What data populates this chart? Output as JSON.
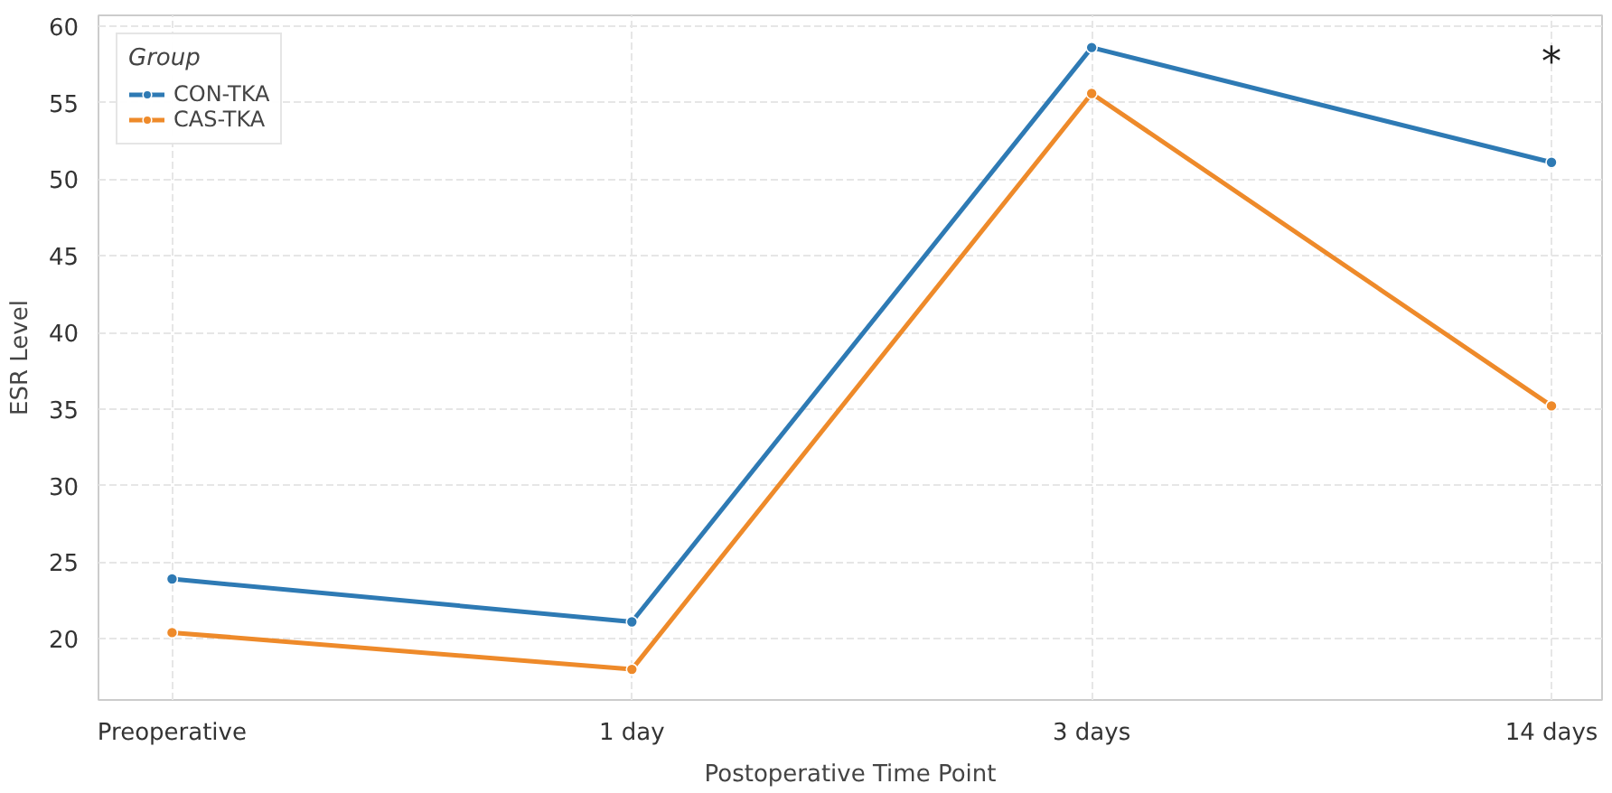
{
  "chart_data": {
    "type": "line",
    "xlabel": "Postoperative Time Point",
    "ylabel": "ESR Level",
    "legend_title": "Group",
    "categories": [
      "Preoperative",
      "1 day",
      "3 days",
      "14 days"
    ],
    "series": [
      {
        "name": "CON-TKA",
        "color": "#2e7ab4",
        "values": [
          23.9,
          21.1,
          58.6,
          51.1
        ]
      },
      {
        "name": "CAS-TKA",
        "color": "#ee8a2a",
        "values": [
          20.4,
          18.0,
          55.6,
          35.2
        ]
      }
    ],
    "ylim": [
      16,
      60.7
    ],
    "yticks": [
      20,
      25,
      30,
      35,
      40,
      45,
      50,
      55,
      60
    ],
    "grid": true,
    "legend": "top left",
    "marker": "circle",
    "line_style": "solid",
    "annotations": [
      "*"
    ]
  }
}
